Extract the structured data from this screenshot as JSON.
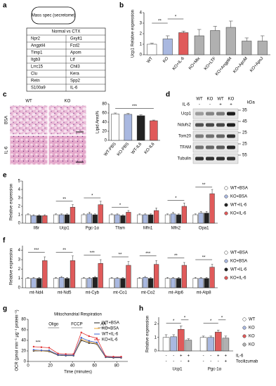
{
  "panel_labels": [
    "a",
    "b",
    "c",
    "d",
    "e",
    "f",
    "g",
    "h"
  ],
  "secretome": {
    "title": "Mass spec (secretome)",
    "header": "Normal vs CTX",
    "rows": [
      [
        "Npr2",
        "Gxylt1"
      ],
      [
        "Angptl4",
        "Fzd2"
      ],
      [
        "Timp1",
        "Apom"
      ],
      [
        "Itgb3",
        "Ltf"
      ],
      [
        "Lrrc15",
        "Chil3"
      ],
      [
        "Clu",
        "Kera"
      ],
      [
        "Retn",
        "Spp2"
      ],
      [
        "S100a9",
        "IL-6"
      ]
    ]
  },
  "histology": {
    "columns": [
      "WT",
      "KO"
    ],
    "rows": [
      "BSA",
      "IL-6"
    ]
  },
  "blot": {
    "treatment": "IL-6",
    "genotypes": [
      "WT",
      "KO",
      "WT",
      "KO"
    ],
    "il6": [
      "-",
      "-",
      "+",
      "+"
    ],
    "unit": "kDa",
    "bands": [
      {
        "name": "Ucp1",
        "kda": 35
      },
      {
        "name": "Ndufs2",
        "kda": 45
      },
      {
        "name": "Tom20",
        "kda": 25
      },
      {
        "name": "TFAM",
        "kda": 25
      },
      {
        "name": "Tubulin",
        "kda": 55
      }
    ]
  },
  "chart_data": [
    {
      "type": "bar",
      "y_label": "Ucp1 Relative expression",
      "categories": [
        "WT",
        "KO",
        "KO+IL-6",
        "KO+Mix",
        "KO+LTF",
        "KO+Angptl4",
        "KO+ApoM",
        "KO+ApoJ"
      ],
      "values": [
        1.0,
        1.5,
        2.1,
        1.8,
        2.3,
        2.6,
        1.3,
        1.3
      ],
      "errors": [
        0.1,
        0.3,
        0.15,
        0.6,
        0.4,
        0.6,
        0.3,
        0.5
      ],
      "colors": [
        "#ffffff",
        "#a9b8e0",
        "#e05a5a",
        "#b0b0b0",
        "#b0b0b0",
        "#b0b0b0",
        "#b0b0b0",
        "#b0b0b0"
      ],
      "ylim": [
        0,
        4
      ],
      "yticks": [
        0,
        1,
        2,
        3,
        4
      ],
      "annotations": [
        "**",
        "*"
      ]
    },
    {
      "type": "bar",
      "y_label": "Lipid Area%",
      "categories": [
        "WT-PBS",
        "KO-PBS",
        "WT-IL6",
        "KO-IL6"
      ],
      "values": [
        58,
        57,
        54,
        43
      ],
      "errors": [
        2,
        2,
        2,
        1.5
      ],
      "colors": [
        "#ffffff",
        "#a9b8e0",
        "#222222",
        "#e05a5a"
      ],
      "ylim": [
        0,
        80
      ],
      "yticks": [
        0,
        20,
        40,
        60,
        80
      ],
      "annotations": [
        "***"
      ]
    },
    {
      "type": "bar",
      "y_label": "Relative expression",
      "categories": [
        "Il6r",
        "Ucp1",
        "Pgc-1α",
        "Tfam",
        "Mfn1",
        "Mfn2",
        "Opa1"
      ],
      "series": [
        {
          "name": "WT+BSA",
          "color": "#ffffff",
          "values": [
            1,
            1,
            1,
            1,
            1,
            1,
            1
          ],
          "errors": [
            0.1,
            0.1,
            0.1,
            0.1,
            0.1,
            0.1,
            0.1
          ]
        },
        {
          "name": "KO+BSA",
          "color": "#a9b8e0",
          "values": [
            0.9,
            1.0,
            1.1,
            1.0,
            1.0,
            1.1,
            1.2
          ],
          "errors": [
            0.1,
            0.1,
            0.2,
            0.1,
            0.1,
            0.2,
            0.2
          ]
        },
        {
          "name": "WT+IL-6",
          "color": "#222222",
          "values": [
            0.9,
            1.0,
            1.0,
            0.9,
            1.0,
            1.0,
            1.2
          ],
          "errors": [
            0.1,
            0.1,
            0.1,
            0.1,
            0.1,
            0.1,
            0.2
          ]
        },
        {
          "name": "KO+IL-6",
          "color": "#e05a5a",
          "values": [
            0.9,
            1.9,
            2.2,
            1.3,
            1.5,
            2.0,
            3.5
          ],
          "errors": [
            0.1,
            0.3,
            0.4,
            0.2,
            0.3,
            0.4,
            0.5
          ]
        }
      ],
      "ylim": [
        0,
        5
      ],
      "yticks": [
        0,
        1,
        2,
        3,
        4,
        5
      ],
      "annotations": [
        "**",
        "*",
        "*",
        "*",
        "**"
      ]
    },
    {
      "type": "bar",
      "y_label": "Relative expression",
      "categories": [
        "mt-Nd4",
        "mt-Nd5",
        "mt-Cyb",
        "mt-Co1",
        "mt-Co2",
        "mt-Atp6",
        "mt-Atp8"
      ],
      "series": [
        {
          "name": "WT+BSA",
          "color": "#ffffff",
          "values": [
            1,
            1,
            1,
            1,
            1,
            1,
            1
          ],
          "errors": [
            0.1,
            0.1,
            0.1,
            0.1,
            0.1,
            0.1,
            0.1
          ]
        },
        {
          "name": "KO+BSA",
          "color": "#a9b8e0",
          "values": [
            1.0,
            1.1,
            1.0,
            1.0,
            1.1,
            1.0,
            1.0
          ],
          "errors": [
            0.1,
            0.1,
            0.1,
            0.1,
            0.1,
            0.1,
            0.1
          ]
        },
        {
          "name": "WT+IL-6",
          "color": "#222222",
          "values": [
            1.0,
            1.0,
            1.1,
            1.0,
            1.0,
            1.0,
            1.0
          ],
          "errors": [
            0.1,
            0.1,
            0.1,
            0.1,
            0.1,
            0.1,
            0.1
          ]
        },
        {
          "name": "KO+IL-6",
          "color": "#e05a5a",
          "values": [
            2.9,
            2.9,
            2.6,
            2.4,
            2.5,
            2.4,
            2.2
          ],
          "errors": [
            0.4,
            0.5,
            0.4,
            0.4,
            0.4,
            0.3,
            0.3
          ]
        }
      ],
      "ylim": [
        0,
        4.5
      ],
      "yticks": [
        0,
        1,
        2,
        3,
        4
      ],
      "annotations": [
        "***",
        "**",
        "***",
        "**",
        "***",
        "**",
        "**"
      ]
    },
    {
      "type": "line",
      "title": "Mitochondrial Respiration",
      "x_label": "Time (minutes)",
      "y_label": "OCR (pmol min⁻¹ μg⁻¹ protein⁻¹)",
      "x": [
        5,
        12,
        19,
        27,
        34,
        41,
        48,
        55,
        62,
        70,
        77,
        84
      ],
      "series": [
        {
          "name": "WT+BSA",
          "color": "#222222",
          "values": [
            20,
            20,
            19,
            12,
            11,
            11,
            40,
            35,
            33,
            8,
            7,
            7
          ]
        },
        {
          "name": "KO+BSA",
          "color": "#f0a830",
          "values": [
            21,
            20,
            20,
            13,
            12,
            12,
            42,
            37,
            34,
            9,
            8,
            8
          ]
        },
        {
          "name": "WT+IL-6",
          "color": "#3a5fd0",
          "values": [
            22,
            21,
            21,
            13,
            12,
            12,
            45,
            39,
            36,
            9,
            8,
            8
          ]
        },
        {
          "name": "KO+IL-6",
          "color": "#e03030",
          "values": [
            28,
            27,
            26,
            15,
            14,
            14,
            55,
            48,
            44,
            10,
            9,
            9
          ]
        }
      ],
      "xlim": [
        0,
        90
      ],
      "xticks": [
        0,
        20,
        40,
        60,
        80
      ],
      "ylim": [
        0,
        80
      ],
      "yticks": [
        0,
        20,
        40,
        60,
        80
      ],
      "annotations": [
        "Oligo",
        "FCCP",
        "AA",
        "***"
      ]
    },
    {
      "type": "bar",
      "y_label": "Relative expression",
      "categories": [
        "Ucp1",
        "Pgc-1α"
      ],
      "series": [
        {
          "name": "WT",
          "color": "#ffffff",
          "values": [
            1.0,
            1.0
          ],
          "errors": [
            0.2,
            0.1
          ]
        },
        {
          "name": "KO",
          "color": "#a9b8e0",
          "values": [
            1.05,
            1.0
          ],
          "errors": [
            0.15,
            0.1
          ]
        },
        {
          "name": "KO",
          "color": "#e05a5a",
          "values": [
            1.6,
            1.4
          ],
          "errors": [
            0.25,
            0.15
          ]
        },
        {
          "name": "KO",
          "color": "#b0b0b0",
          "values": [
            0.8,
            0.95
          ],
          "errors": [
            0.1,
            0.15
          ]
        }
      ],
      "conditions": [
        {
          "name": "IL-6",
          "values": [
            "-",
            "-",
            "+",
            "+",
            "-",
            "-",
            "+",
            "+"
          ]
        },
        {
          "name": "Tocilizumab",
          "values": [
            "-",
            "-",
            "-",
            "+",
            "-",
            "-",
            "-",
            "+"
          ]
        }
      ],
      "ylim": [
        0,
        2.5
      ],
      "yticks": [
        0,
        1,
        2
      ],
      "annotations": [
        "*",
        "*",
        "*",
        "*"
      ]
    }
  ]
}
